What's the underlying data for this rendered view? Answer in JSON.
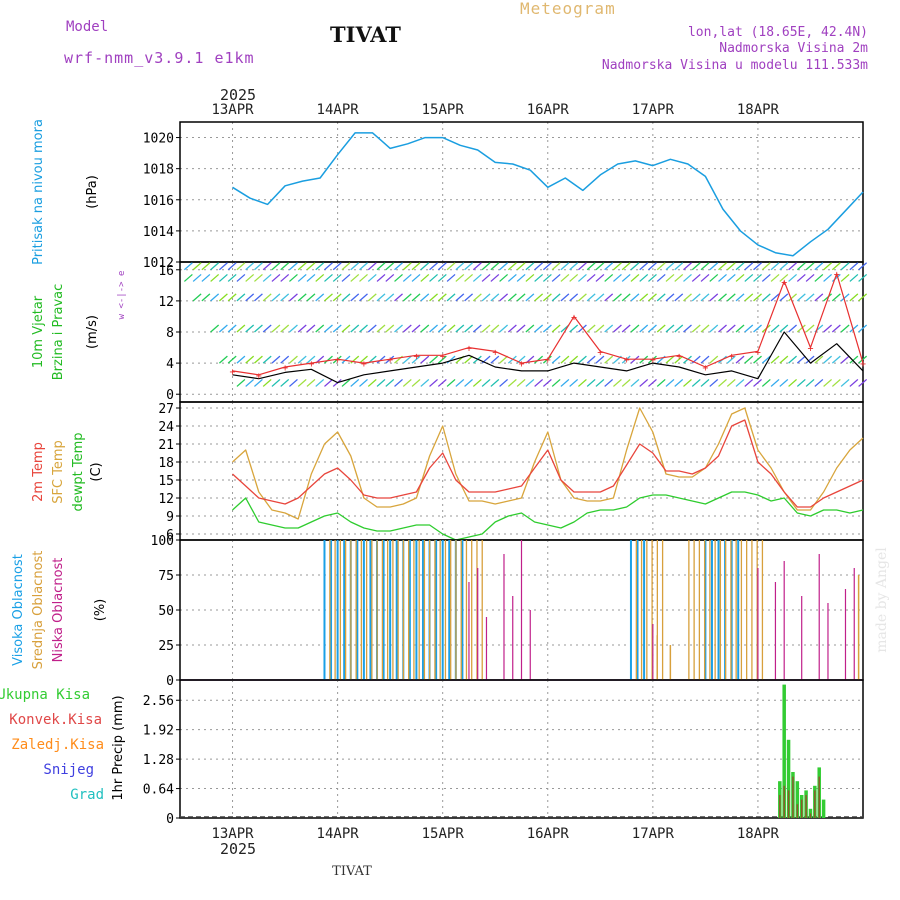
{
  "header": {
    "model_label": "Model",
    "model_name": "wrf-nmm_v3.9.1 e1km",
    "station": "TIVAT",
    "product": "Meteogram",
    "coords": "lon,lat (18.65E, 42.4N)",
    "elev_station": "Nadmorska Visina 2m",
    "elev_model": "Nadmorska Visina u modelu 111.533m",
    "footer_station": "TIVAT",
    "watermark": "made by Angel"
  },
  "time_axis": {
    "year": "2025",
    "labels": [
      "13APR",
      "14APR",
      "15APR",
      "16APR",
      "17APR",
      "18APR"
    ]
  },
  "colors": {
    "pressure": "#1a9ee0",
    "temp2m": "#e8453c",
    "sfc": "#d8a53c",
    "dew": "#2ecc2e",
    "cloud_high": "#1aa0e6",
    "cloud_mid": "#d8a03c",
    "cloud_low": "#c0208a",
    "precip_total": "#33cc33",
    "precip_conv": "#e04848",
    "precip_frozen": "#ff8c1a",
    "precip_snow": "#4040e0",
    "precip_hail": "#20c0c0",
    "gust": "#e83030",
    "wind_speed": "#000000"
  },
  "chart_data": [
    {
      "type": "line",
      "panel": "pressure",
      "label": "Pritisak na nivou mora",
      "unit": "(hPa)",
      "ylim": [
        1012,
        1021
      ],
      "yticks": [
        "1012",
        "1014",
        "1016",
        "1018",
        "1020"
      ],
      "x_hours": [
        0,
        4,
        8,
        12,
        16,
        20,
        24,
        28,
        32,
        36,
        40,
        44,
        48,
        52,
        56,
        60,
        64,
        68,
        72,
        76,
        80,
        84,
        88,
        92,
        96,
        100,
        104,
        108,
        112,
        116,
        120,
        124,
        128,
        132,
        136,
        140,
        144
      ],
      "values": [
        1016.8,
        1016.1,
        1015.7,
        1016.9,
        1017.2,
        1017.4,
        1018.9,
        1020.3,
        1020.3,
        1019.3,
        1019.6,
        1020.0,
        1020.0,
        1019.5,
        1019.2,
        1018.4,
        1018.3,
        1017.9,
        1016.8,
        1017.4,
        1016.6,
        1017.6,
        1018.3,
        1018.5,
        1018.2,
        1018.6,
        1018.3,
        1017.5,
        1015.4,
        1014.0,
        1013.1,
        1012.6,
        1012.4,
        1013.3,
        1014.1,
        1015.3,
        1016.5
      ]
    },
    {
      "type": "line",
      "panel": "wind",
      "label_1": "10m Vjetar",
      "label_2": "Brzina i Pravac",
      "unit": "(m/s)",
      "compass": "w <-|-> e",
      "ylim": [
        -1,
        17
      ],
      "yticks": [
        "0",
        "4",
        "8",
        "12",
        "16"
      ],
      "x_hours": [
        0,
        6,
        12,
        18,
        24,
        30,
        36,
        42,
        48,
        54,
        60,
        66,
        72,
        78,
        84,
        90,
        96,
        102,
        108,
        114,
        120,
        126,
        132,
        138,
        144
      ],
      "speed": [
        2.5,
        2.0,
        2.8,
        3.2,
        1.5,
        2.5,
        3.0,
        3.5,
        4.0,
        5.0,
        3.5,
        3.0,
        3.0,
        4.0,
        3.5,
        3.0,
        4.0,
        3.5,
        2.5,
        3.0,
        2.0,
        8.0,
        4.0,
        6.5,
        3.0
      ],
      "gust": [
        3.0,
        2.5,
        3.5,
        4.0,
        4.5,
        4.0,
        4.5,
        5.0,
        5.0,
        6.0,
        5.5,
        4.0,
        4.5,
        10.0,
        5.5,
        4.5,
        4.5,
        5.0,
        3.5,
        5.0,
        5.5,
        14.5,
        6.0,
        15.5,
        4.0
      ]
    },
    {
      "type": "line",
      "panel": "temperature",
      "label_t2m": "2m Temp",
      "label_sfc": "SFC Temp",
      "label_dew": "dewpt Temp",
      "unit": "(C)",
      "ylim": [
        5,
        28
      ],
      "yticks": [
        "6",
        "9",
        "12",
        "15",
        "18",
        "21",
        "24",
        "27"
      ],
      "x_hours": [
        0,
        3,
        6,
        9,
        12,
        15,
        18,
        21,
        24,
        27,
        30,
        33,
        36,
        39,
        42,
        45,
        48,
        51,
        54,
        57,
        60,
        63,
        66,
        69,
        72,
        75,
        78,
        81,
        84,
        87,
        90,
        93,
        96,
        99,
        102,
        105,
        108,
        111,
        114,
        117,
        120,
        123,
        126,
        129,
        132,
        135,
        138,
        141,
        144
      ],
      "t2m": [
        16,
        14,
        12,
        11.5,
        11,
        12,
        14,
        16,
        17,
        15,
        12.5,
        12,
        12,
        12.5,
        13,
        17,
        19.5,
        15,
        13,
        13,
        13,
        13.5,
        14,
        17,
        20,
        15,
        13,
        13,
        13,
        14,
        17.5,
        21,
        19.5,
        16.5,
        16.5,
        16,
        17,
        19,
        24,
        25,
        18,
        16,
        13,
        10.5,
        10.5,
        12,
        13,
        14,
        15
      ],
      "sfc": [
        18,
        20,
        13,
        10,
        9.5,
        8.5,
        16,
        21,
        23,
        19,
        12,
        10.5,
        10.5,
        11,
        12,
        19,
        24,
        16,
        11.5,
        11.5,
        11,
        11.5,
        12,
        18,
        23,
        15,
        12,
        11.5,
        11.5,
        12,
        20,
        27,
        23,
        16,
        15.5,
        15.5,
        17,
        21,
        26,
        27,
        20,
        17,
        13,
        10,
        10,
        13,
        17,
        20,
        22
      ],
      "dew": [
        10,
        12,
        8,
        7.5,
        7,
        7,
        8,
        9,
        9.5,
        8,
        7,
        6.5,
        6.5,
        7,
        7.5,
        7.5,
        6,
        5,
        5.5,
        6,
        8,
        9,
        9.5,
        8,
        7.5,
        7,
        8,
        9.5,
        10,
        10,
        10.5,
        12,
        12.5,
        12.5,
        12,
        11.5,
        11,
        12,
        13,
        13,
        12.5,
        11.5,
        12,
        9.5,
        9,
        10,
        10,
        9.5,
        10
      ]
    },
    {
      "type": "bar",
      "panel": "clouds",
      "label_high": "Visoka Oblacnost",
      "label_mid": "Srednja Oblacnost",
      "label_low": "Niska Oblacnost",
      "unit": "(%)",
      "ylim": [
        0,
        100
      ],
      "yticks": [
        "0",
        "25",
        "50",
        "75",
        "100"
      ],
      "high_ranges": [
        [
          21,
          23
        ],
        [
          24,
          53
        ],
        [
          91,
          94
        ],
        [
          108,
          116
        ]
      ],
      "mid_ranges": [
        [
          22,
          58
        ],
        [
          92,
          99
        ],
        [
          104,
          122
        ]
      ],
      "low_spikes": [
        [
          54,
          70
        ],
        [
          56,
          80
        ],
        [
          58,
          45
        ],
        [
          62,
          90
        ],
        [
          64,
          60
        ],
        [
          66,
          100
        ],
        [
          68,
          50
        ],
        [
          96,
          40
        ],
        [
          120,
          80
        ],
        [
          124,
          70
        ],
        [
          126,
          85
        ],
        [
          130,
          60
        ],
        [
          134,
          90
        ],
        [
          136,
          55
        ],
        [
          140,
          65
        ],
        [
          142,
          80
        ]
      ],
      "mid_isolated": [
        [
          97,
          32
        ],
        [
          100,
          25
        ],
        [
          143,
          75
        ]
      ]
    },
    {
      "type": "bar",
      "panel": "precip",
      "label_total": "Ukupna Kisa",
      "label_conv": "Konvek.Kisa",
      "label_frozen": "Zaledj.Kisa",
      "label_snow": "Snijeg",
      "label_hail": "Grad",
      "unit": "1hr Precip (mm)",
      "ylim": [
        0,
        3.0
      ],
      "yticks": [
        "0",
        "0.64",
        "1.28",
        "1.92",
        "2.56"
      ],
      "x_hours": [
        125,
        126,
        127,
        128,
        129,
        130,
        131,
        132,
        133,
        134,
        135,
        136,
        137
      ],
      "total": [
        0.8,
        2.9,
        1.7,
        1.0,
        0.8,
        0.5,
        0.6,
        0.2,
        0.7,
        1.1,
        0.4,
        0.0,
        0.0
      ],
      "convective": [
        0.5,
        0.7,
        0.6,
        0.9,
        0.3,
        0.4,
        0.5,
        0.1,
        0.6,
        0.9,
        0.0,
        0.0,
        0.0
      ]
    }
  ]
}
